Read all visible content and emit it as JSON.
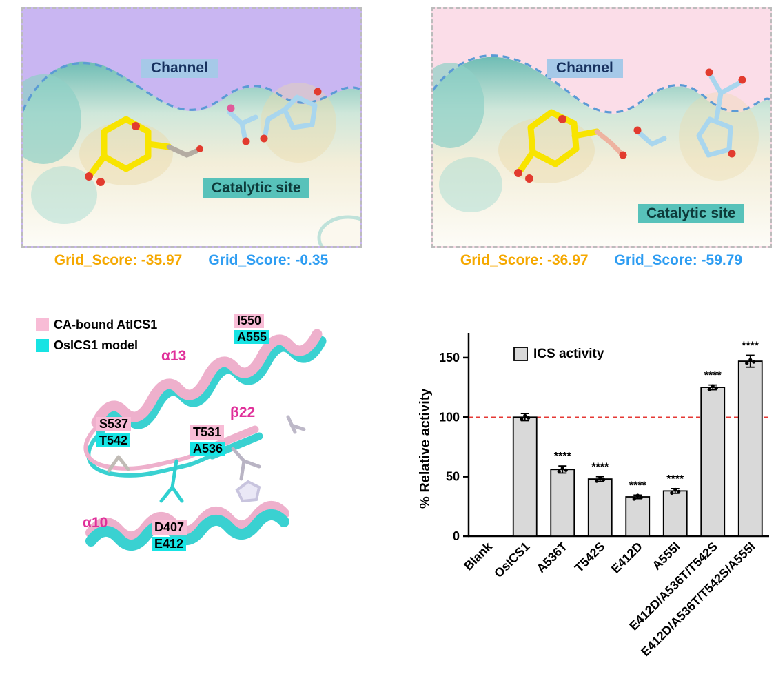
{
  "figure": {
    "dock_panels": [
      {
        "id": "atics1",
        "bg": "#c9b6f2",
        "channel_label": "Channel",
        "catalytic_label": "Catalytic site",
        "scores": [
          {
            "text": "Grid_Score: -35.97",
            "color": "#f5a800"
          },
          {
            "text": "Grid_Score: -0.35",
            "color": "#2e9df2"
          }
        ]
      },
      {
        "id": "osics1",
        "bg": "#fbdde8",
        "channel_label": "Channel",
        "catalytic_label": "Catalytic site",
        "scores": [
          {
            "text": "Grid_Score: -36.97",
            "color": "#f5a800"
          },
          {
            "text": "Grid_Score: -59.79",
            "color": "#2e9df2"
          }
        ]
      }
    ],
    "structure": {
      "legend": [
        {
          "label": "CA-bound AtICS1",
          "color": "#f8bcd6"
        },
        {
          "label": "OsICS1 model",
          "color": "#17e3e3"
        }
      ],
      "helix_labels": {
        "a13": "α13",
        "b22": "β22",
        "a10": "α10"
      },
      "pairs": [
        {
          "top": "I550",
          "bottom": "A555"
        },
        {
          "top": "S537",
          "bottom": "T542"
        },
        {
          "top": "T531",
          "bottom": "A536"
        },
        {
          "top": "D407",
          "bottom": "E412"
        }
      ],
      "highlight_colors": {
        "at": "#f8bcd6",
        "os": "#17e3e3"
      }
    }
  },
  "chart_data": {
    "type": "bar",
    "legend": "ICS activity",
    "ylabel": "% Relative activity",
    "categories": [
      "Blank",
      "OsICS1",
      "A536T",
      "T542S",
      "E412D",
      "A555I",
      "E412D/A536T/T542S",
      "E412D/A536T/T542S/A555I"
    ],
    "values": [
      0,
      100,
      56,
      48,
      33,
      38,
      125,
      147
    ],
    "errors": [
      0,
      3,
      3,
      2,
      1.5,
      2,
      2,
      5
    ],
    "significance": [
      "",
      "",
      "****",
      "****",
      "****",
      "****",
      "****",
      "****"
    ],
    "yticks": [
      0,
      50,
      100,
      150
    ],
    "ylim": [
      0,
      165
    ],
    "reference_line": {
      "value": 100,
      "color": "#e53935",
      "style": "dashed"
    },
    "bar_fill": "#d9d9d9",
    "bar_stroke": "#000000",
    "legend_position": "inside-top-left",
    "grid": false
  }
}
